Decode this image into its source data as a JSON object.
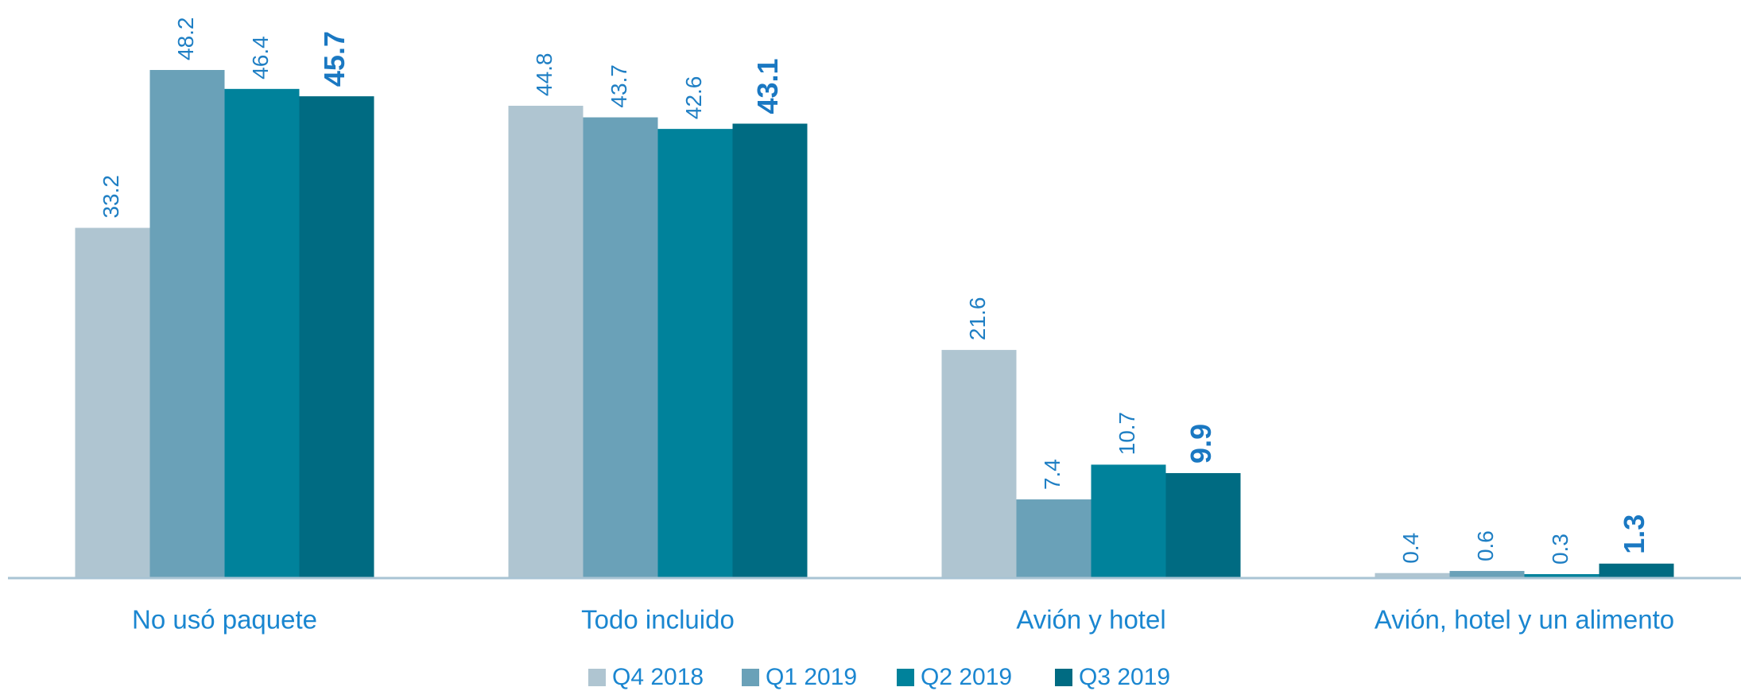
{
  "chart_data": {
    "type": "bar",
    "categories": [
      "No usó paquete",
      "Todo incluido",
      "Avión y hotel",
      "Avión, hotel y un alimento"
    ],
    "series": [
      {
        "name": "Q4 2018",
        "color": "#afc5d1",
        "values": [
          33.2,
          44.8,
          21.6,
          0.4
        ]
      },
      {
        "name": "Q1 2019",
        "color": "#6aa1b8",
        "values": [
          48.2,
          43.7,
          7.4,
          0.6
        ]
      },
      {
        "name": "Q2 2019",
        "color": "#00829b",
        "values": [
          46.4,
          42.6,
          10.7,
          0.3
        ]
      },
      {
        "name": "Q3 2019",
        "color": "#006b82",
        "values": [
          45.7,
          43.1,
          9.9,
          1.3
        ]
      }
    ],
    "legend": "bottom"
  }
}
